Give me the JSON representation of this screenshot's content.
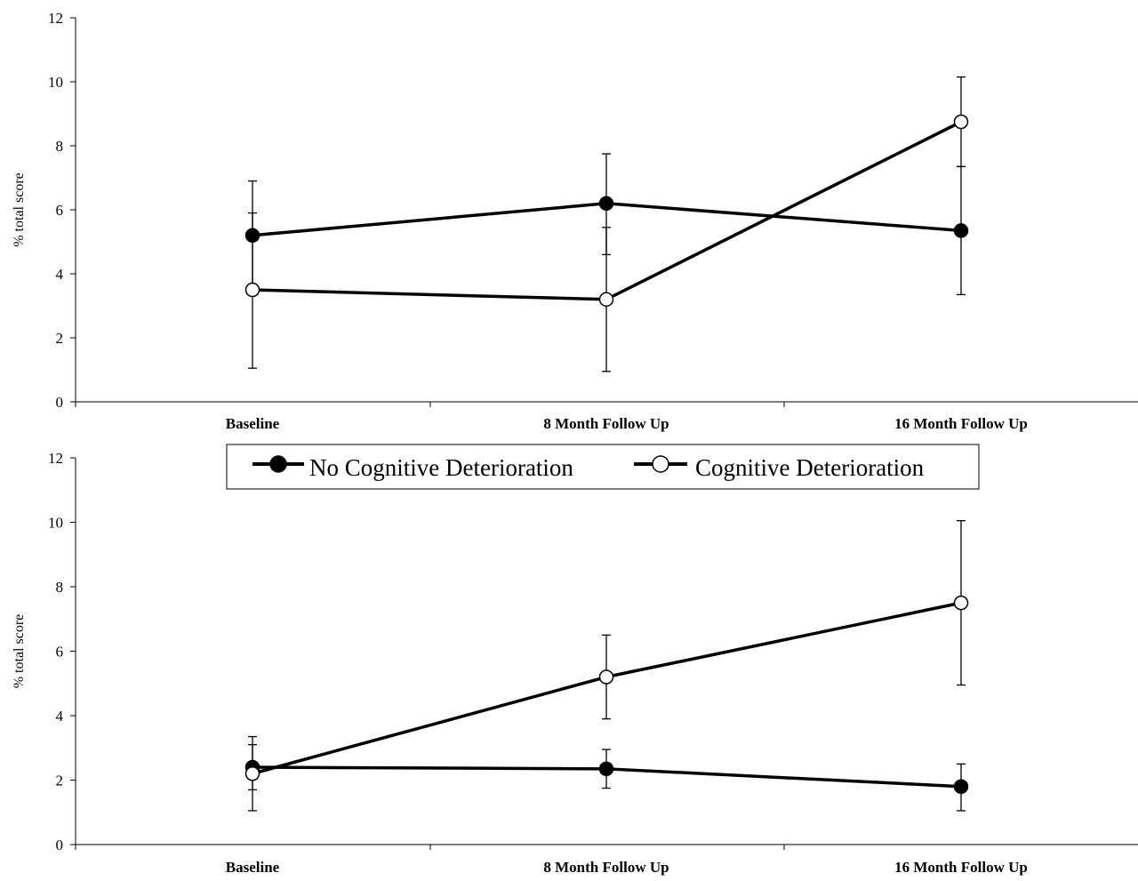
{
  "legend": {
    "position": "between-panels",
    "items": [
      {
        "label": "No Cognitive Deterioration",
        "marker": "filled-circle"
      },
      {
        "label": "Cognitive Deterioration",
        "marker": "open-circle"
      }
    ]
  },
  "chart_data": [
    {
      "type": "line",
      "xlabel": "",
      "ylabel": "% total score",
      "ylim": [
        0,
        12
      ],
      "yticks": [
        "0",
        "2",
        "4",
        "6",
        "8",
        "10",
        "12"
      ],
      "categories": [
        "Baseline",
        "8 Month Follow Up",
        "16 Month Follow Up"
      ],
      "grid": false,
      "series": [
        {
          "name": "No Cognitive Deterioration",
          "marker": "filled",
          "values": [
            5.2,
            6.2,
            5.35
          ],
          "error_low": [
            3.5,
            4.6,
            3.35
          ],
          "error_high": [
            6.9,
            7.75,
            7.35
          ]
        },
        {
          "name": "Cognitive Deterioration",
          "marker": "open",
          "values": [
            3.5,
            3.2,
            8.75
          ],
          "error_low": [
            1.05,
            0.95,
            7.35
          ],
          "error_high": [
            5.9,
            5.45,
            10.15
          ]
        }
      ]
    },
    {
      "type": "line",
      "xlabel": "",
      "ylabel": "% total score",
      "ylim": [
        0,
        12
      ],
      "yticks": [
        "0",
        "2",
        "4",
        "6",
        "8",
        "10",
        "12"
      ],
      "categories": [
        "Baseline",
        "8 Month Follow Up",
        "16 Month Follow Up"
      ],
      "grid": false,
      "series": [
        {
          "name": "No Cognitive Deterioration",
          "marker": "filled",
          "values": [
            2.4,
            2.35,
            1.8
          ],
          "error_low": [
            1.7,
            1.75,
            1.05
          ],
          "error_high": [
            3.1,
            2.95,
            2.5
          ]
        },
        {
          "name": "Cognitive Deterioration",
          "marker": "open",
          "values": [
            2.2,
            5.2,
            7.5
          ],
          "error_low": [
            1.05,
            3.9,
            4.95
          ],
          "error_high": [
            3.35,
            6.5,
            10.05
          ]
        }
      ]
    }
  ]
}
